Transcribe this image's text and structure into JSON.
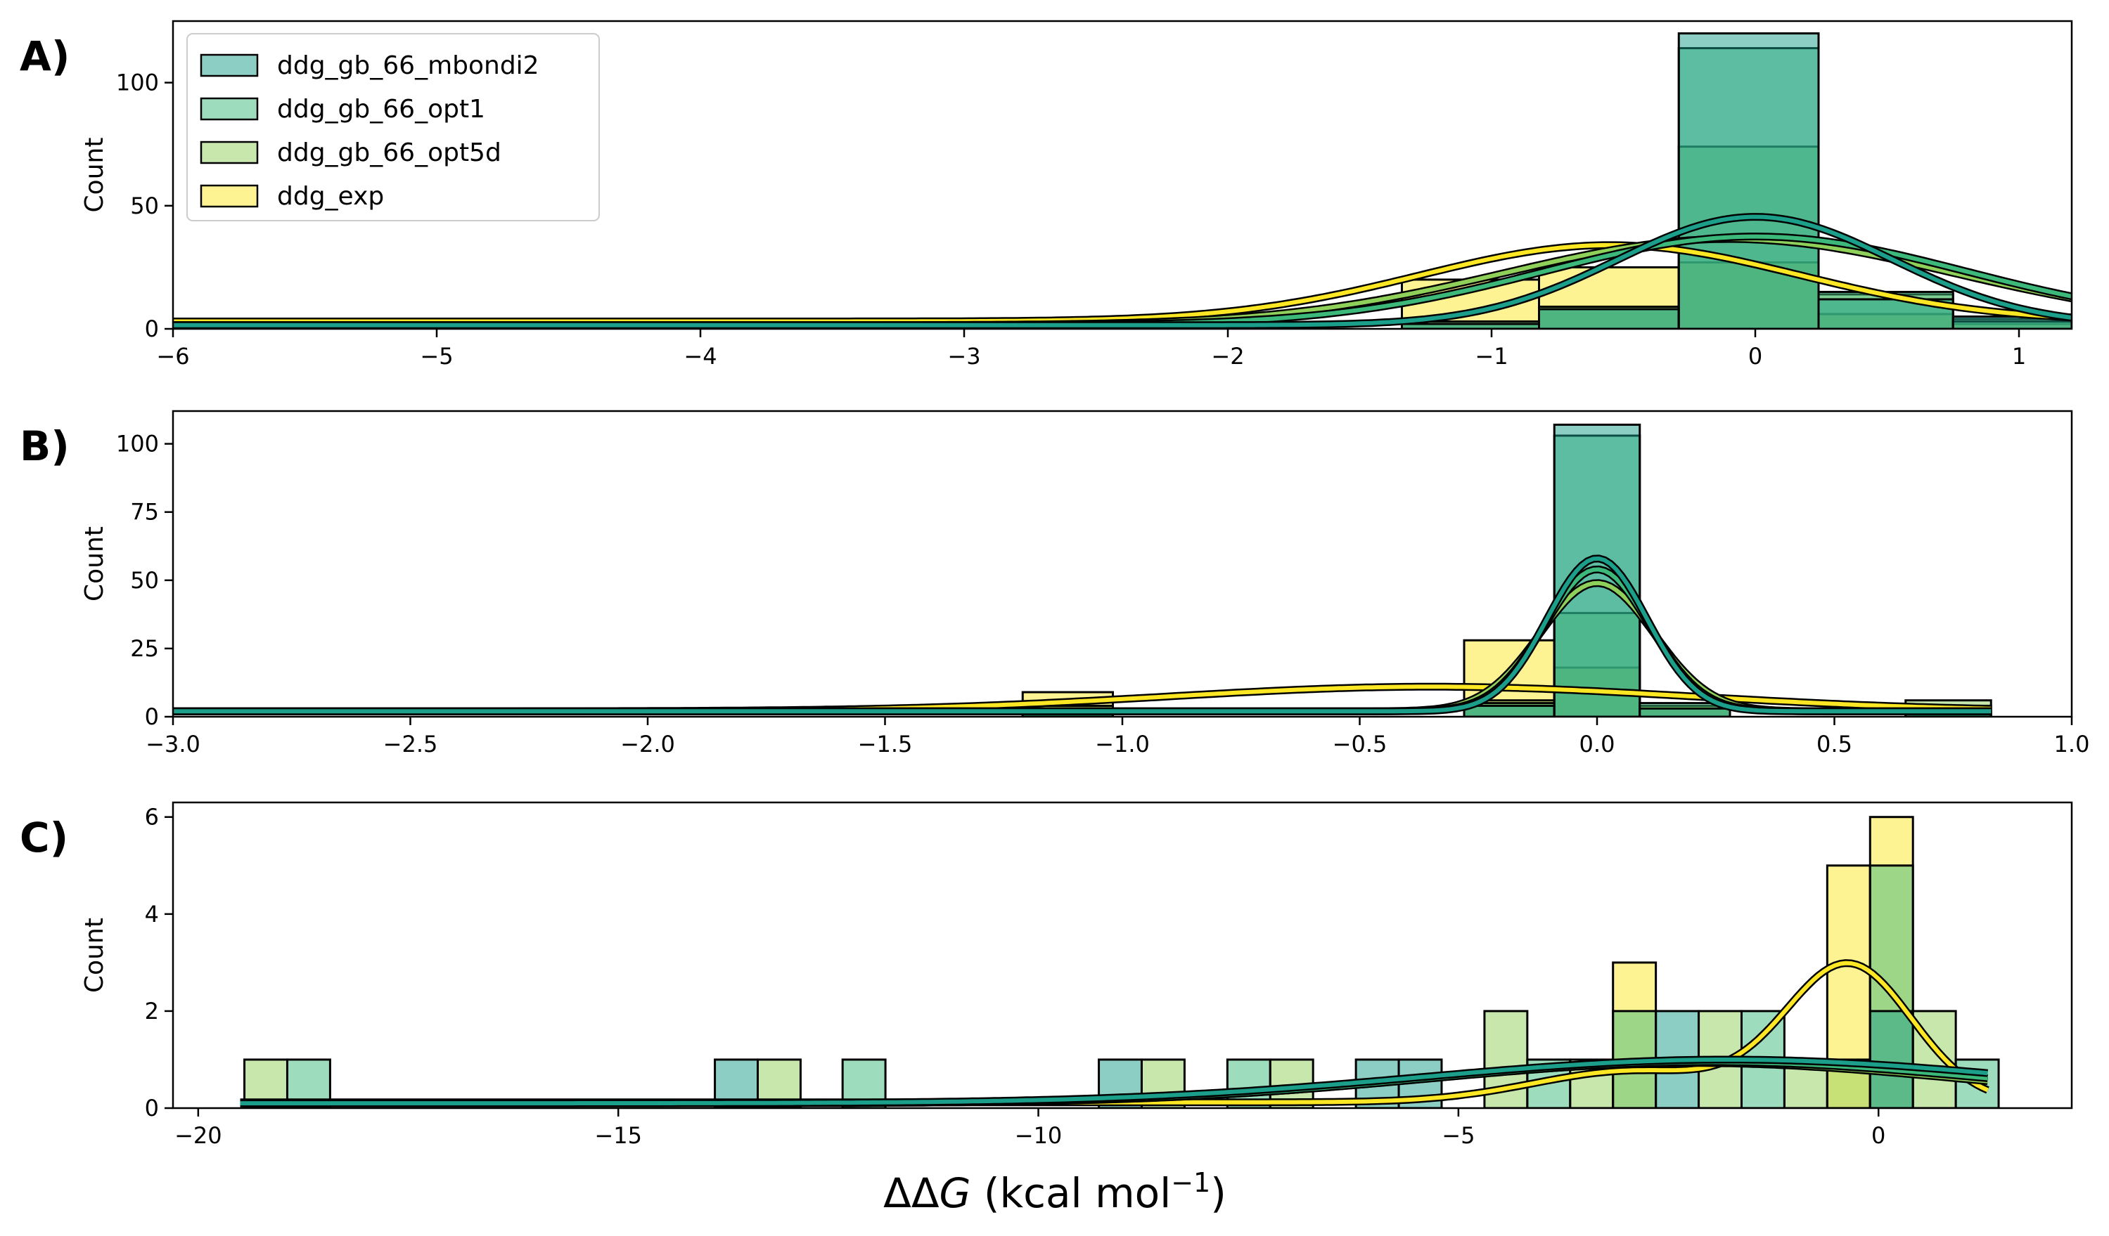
{
  "figure": {
    "xlabel_prefix": "ΔΔ",
    "xlabel_var": "G",
    "xlabel_unit": " (kcal mol",
    "xlabel_exp": "−1",
    "xlabel_close": ")"
  },
  "colors": {
    "ddg_gb_66_mbondi2": "#1b9e8a",
    "ddg_gb_66_opt1": "#3cb97a",
    "ddg_gb_66_opt5d": "#8fd05a",
    "ddg_exp": "#fde725"
  },
  "chart_data": [
    {
      "type": "histogram",
      "panel_label": "A)",
      "ylabel": "Count",
      "xlim": [
        -6,
        1.2
      ],
      "ylim": [
        0,
        125
      ],
      "xticks": [
        -6,
        -5,
        -4,
        -3,
        -2,
        -1,
        0,
        1
      ],
      "xtick_labels": [
        "−6",
        "−5",
        "−4",
        "−3",
        "−2",
        "−1",
        "0",
        "1"
      ],
      "yticks": [
        0,
        50,
        100
      ],
      "ytick_labels": [
        "0",
        "50",
        "100"
      ],
      "legend": {
        "position": "upper-left",
        "entries": [
          "ddg_gb_66_mbondi2",
          "ddg_gb_66_opt1",
          "ddg_gb_66_opt5d",
          "ddg_exp"
        ]
      },
      "bins": [
        {
          "x0": -1.34,
          "x1": -0.82,
          "values": {
            "ddg_gb_66_mbondi2": 2,
            "ddg_gb_66_opt1": 3,
            "ddg_gb_66_opt5d": 3,
            "ddg_exp": 20
          }
        },
        {
          "x0": -0.82,
          "x1": -0.29,
          "values": {
            "ddg_gb_66_mbondi2": 8,
            "ddg_gb_66_opt1": 9,
            "ddg_gb_66_opt5d": 8,
            "ddg_exp": 25
          }
        },
        {
          "x0": -0.29,
          "x1": 0.24,
          "values": {
            "ddg_gb_66_mbondi2": 120,
            "ddg_gb_66_opt1": 114,
            "ddg_gb_66_opt5d": 74,
            "ddg_exp": 27
          }
        },
        {
          "x0": 0.24,
          "x1": 0.75,
          "values": {
            "ddg_gb_66_mbondi2": 12,
            "ddg_gb_66_opt1": 15,
            "ddg_gb_66_opt5d": 14,
            "ddg_exp": 6
          }
        },
        {
          "x0": 0.75,
          "x1": 1.2,
          "values": {
            "ddg_gb_66_mbondi2": 5,
            "ddg_gb_66_opt1": 3,
            "ddg_gb_66_opt5d": 4,
            "ddg_exp": 2
          }
        }
      ],
      "kde": [
        {
          "series": "ddg_exp",
          "base": 3,
          "amp": 31,
          "mu": -0.55,
          "sigma": 0.72,
          "end_x": 1.2
        },
        {
          "series": "ddg_gb_66_opt5d",
          "base": 1.5,
          "amp": 35,
          "mu": -0.1,
          "sigma": 0.85,
          "end_x": 1.2
        },
        {
          "series": "ddg_gb_66_opt1",
          "base": 1.5,
          "amp": 36,
          "mu": 0.0,
          "sigma": 0.8,
          "end_x": 1.2
        },
        {
          "series": "ddg_gb_66_mbondi2",
          "base": 1.5,
          "amp": 44,
          "mu": 0.0,
          "sigma": 0.52,
          "end_x": 1.2
        }
      ]
    },
    {
      "type": "histogram",
      "panel_label": "B)",
      "ylabel": "Count",
      "xlim": [
        -3,
        1
      ],
      "ylim": [
        0,
        112
      ],
      "xticks": [
        -3.0,
        -2.5,
        -2.0,
        -1.5,
        -1.0,
        -0.5,
        0.0,
        0.5,
        1.0
      ],
      "xtick_labels": [
        "−3.0",
        "−2.5",
        "−2.0",
        "−1.5",
        "−1.0",
        "−0.5",
        "0.0",
        "0.5",
        "1.0"
      ],
      "yticks": [
        0,
        25,
        50,
        75,
        100
      ],
      "ytick_labels": [
        "0",
        "25",
        "50",
        "75",
        "100"
      ],
      "bins": [
        {
          "x0": -1.21,
          "x1": -1.02,
          "values": {
            "ddg_gb_66_mbondi2": 2,
            "ddg_gb_66_opt1": 3,
            "ddg_gb_66_opt5d": 4,
            "ddg_exp": 9
          }
        },
        {
          "x0": -0.28,
          "x1": -0.09,
          "values": {
            "ddg_gb_66_mbondi2": 4,
            "ddg_gb_66_opt1": 5,
            "ddg_gb_66_opt5d": 6,
            "ddg_exp": 28
          }
        },
        {
          "x0": -0.09,
          "x1": 0.09,
          "values": {
            "ddg_gb_66_mbondi2": 107,
            "ddg_gb_66_opt1": 103,
            "ddg_gb_66_opt5d": 38,
            "ddg_exp": 18
          }
        },
        {
          "x0": 0.09,
          "x1": 0.28,
          "values": {
            "ddg_gb_66_mbondi2": 3,
            "ddg_gb_66_opt1": 5,
            "ddg_gb_66_opt5d": 4,
            "ddg_exp": 4
          }
        },
        {
          "x0": 0.65,
          "x1": 0.83,
          "values": {
            "ddg_gb_66_mbondi2": 2,
            "ddg_gb_66_opt1": 4,
            "ddg_gb_66_opt5d": 6,
            "ddg_exp": 2
          }
        }
      ],
      "kde": [
        {
          "series": "ddg_exp",
          "base": 2,
          "amp": 9,
          "mu": -0.35,
          "sigma": 0.55,
          "end_x": 0.83
        },
        {
          "series": "ddg_gb_66_opt5d",
          "base": 2,
          "amp": 47,
          "mu": 0.0,
          "sigma": 0.12,
          "end_x": 0.83
        },
        {
          "series": "ddg_gb_66_opt1",
          "base": 2,
          "amp": 52,
          "mu": 0.0,
          "sigma": 0.11,
          "end_x": 0.83
        },
        {
          "series": "ddg_gb_66_mbondi2",
          "base": 2,
          "amp": 56,
          "mu": 0.0,
          "sigma": 0.105,
          "end_x": 0.83
        }
      ]
    },
    {
      "type": "histogram",
      "panel_label": "C)",
      "ylabel": "Count",
      "xlim": [
        -20.3,
        2.3
      ],
      "ylim": [
        0,
        6.3
      ],
      "xticks": [
        -20,
        -15,
        -10,
        -5,
        0
      ],
      "xtick_labels": [
        "−20",
        "−15",
        "−10",
        "−5",
        "0"
      ],
      "yticks": [
        0,
        2,
        4,
        6
      ],
      "ytick_labels": [
        "0",
        "2",
        "4",
        "6"
      ],
      "bar_width": 0.51,
      "bars": [
        {
          "x": -19.45,
          "series": "ddg_gb_66_opt5d",
          "value": 1
        },
        {
          "x": -18.94,
          "series": "ddg_gb_66_opt1",
          "value": 1
        },
        {
          "x": -13.85,
          "series": "ddg_gb_66_mbondi2",
          "value": 1
        },
        {
          "x": -13.34,
          "series": "ddg_gb_66_opt5d",
          "value": 1
        },
        {
          "x": -12.33,
          "series": "ddg_gb_66_opt1",
          "value": 1
        },
        {
          "x": -9.28,
          "series": "ddg_gb_66_mbondi2",
          "value": 1
        },
        {
          "x": -8.77,
          "series": "ddg_gb_66_opt5d",
          "value": 1
        },
        {
          "x": -7.75,
          "series": "ddg_gb_66_opt1",
          "value": 1
        },
        {
          "x": -7.24,
          "series": "ddg_gb_66_opt5d",
          "value": 1
        },
        {
          "x": -6.22,
          "series": "ddg_gb_66_mbondi2",
          "value": 1
        },
        {
          "x": -5.71,
          "series": "ddg_gb_66_mbondi2",
          "value": 1
        },
        {
          "x": -4.69,
          "series": "ddg_gb_66_opt5d",
          "value": 2
        },
        {
          "x": -4.18,
          "series": "ddg_gb_66_opt1",
          "value": 1
        },
        {
          "x": -3.67,
          "series": "ddg_gb_66_opt5d",
          "value": 1
        },
        {
          "x": -3.16,
          "series": "ddg_exp",
          "value": 3
        },
        {
          "x": -3.16,
          "series": "ddg_gb_66_opt1",
          "value": 2
        },
        {
          "x": -2.65,
          "series": "ddg_gb_66_mbondi2",
          "value": 2
        },
        {
          "x": -2.14,
          "series": "ddg_gb_66_opt5d",
          "value": 2
        },
        {
          "x": -1.63,
          "series": "ddg_gb_66_opt1",
          "value": 2
        },
        {
          "x": -1.12,
          "series": "ddg_gb_66_opt5d",
          "value": 1
        },
        {
          "x": -0.61,
          "series": "ddg_exp",
          "value": 5
        },
        {
          "x": -0.61,
          "series": "ddg_gb_66_opt5d",
          "value": 1
        },
        {
          "x": -0.1,
          "series": "ddg_exp",
          "value": 6
        },
        {
          "x": -0.1,
          "series": "ddg_gb_66_opt1",
          "value": 5
        },
        {
          "x": -0.1,
          "series": "ddg_gb_66_mbondi2",
          "value": 2
        },
        {
          "x": 0.41,
          "series": "ddg_gb_66_opt5d",
          "value": 2
        },
        {
          "x": 0.92,
          "series": "ddg_gb_66_opt1",
          "value": 1
        }
      ],
      "kde": [
        {
          "series": "ddg_exp",
          "start_x": -19.5,
          "end_x": 1.3,
          "components": [
            {
              "amp": 0.65,
              "mu": -2.9,
              "sigma": 1.2
            },
            {
              "amp": 2.8,
              "mu": -0.35,
              "sigma": 0.75
            }
          ],
          "base": 0.12
        },
        {
          "series": "ddg_gb_66_opt5d",
          "start_x": -19.5,
          "end_x": 1.3,
          "components": [
            {
              "amp": 0.83,
              "mu": -2.2,
              "sigma": 3.2
            }
          ],
          "base": 0.1
        },
        {
          "series": "ddg_gb_66_opt1",
          "start_x": -19.5,
          "end_x": 1.3,
          "components": [
            {
              "amp": 0.85,
              "mu": -2.0,
              "sigma": 3.3
            }
          ],
          "base": 0.1
        },
        {
          "series": "ddg_gb_66_mbondi2",
          "start_x": -19.5,
          "end_x": 1.3,
          "components": [
            {
              "amp": 0.9,
              "mu": -1.8,
              "sigma": 3.6
            }
          ],
          "base": 0.1
        }
      ]
    }
  ]
}
